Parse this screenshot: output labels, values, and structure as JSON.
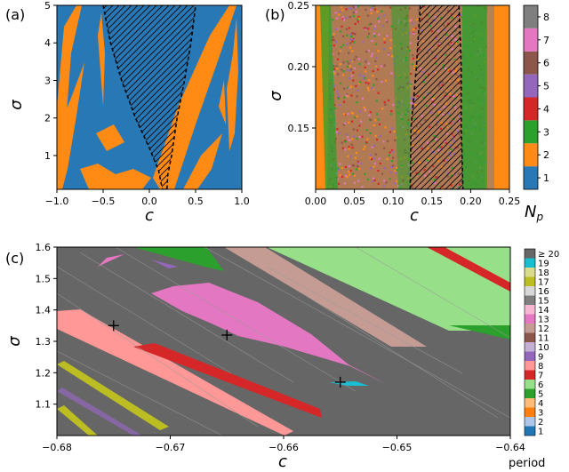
{
  "figure": {
    "panels": [
      "(a)",
      "(b)",
      "(c)"
    ]
  },
  "colors": {
    "blue": "#2878b5",
    "orange": "#ff8a14",
    "green": "#2ca02c",
    "red": "#d62728",
    "purple": "#9467bd",
    "brown": "#8c564b",
    "pink": "#e377c2",
    "gray": "#7f7f7f",
    "dark_gray": "#666666",
    "light_green": "#98df8a",
    "salmon": "#ff9896",
    "rose": "#c49c94",
    "cyan": "#17becf",
    "olive": "#bcbd22"
  },
  "chart_data": [
    {
      "panel": "(a)",
      "type": "heatmap",
      "xlabel": "c",
      "ylabel": "σ",
      "xlim": [
        -1.0,
        1.0
      ],
      "ylim": [
        0.1,
        5.0
      ],
      "xticks": [
        "−1.0",
        "−0.5",
        "0.0",
        "0.5",
        "1.0"
      ],
      "yticks": [
        "1",
        "2",
        "3",
        "4",
        "5"
      ],
      "background_class": "blue",
      "hatched_region_left_boundary": [
        [
          -0.5,
          5.0
        ],
        [
          -0.42,
          4.0
        ],
        [
          -0.3,
          3.0
        ],
        [
          -0.15,
          2.0
        ],
        [
          0.0,
          1.2
        ],
        [
          0.1,
          0.6
        ],
        [
          0.14,
          0.1
        ]
      ],
      "hatched_region_right_boundary": [
        [
          0.5,
          5.0
        ],
        [
          0.45,
          4.0
        ],
        [
          0.38,
          3.0
        ],
        [
          0.3,
          2.0
        ],
        [
          0.24,
          1.0
        ],
        [
          0.2,
          0.5
        ],
        [
          0.19,
          0.1
        ]
      ]
    },
    {
      "panel": "(b)",
      "type": "heatmap",
      "xlabel": "c",
      "ylabel": "σ",
      "xlim": [
        0.0,
        0.25
      ],
      "ylim": [
        0.1,
        0.25
      ],
      "xticks": [
        "0.00",
        "0.05",
        "0.10",
        "0.15",
        "0.20",
        "0.25"
      ],
      "yticks": [
        "0.15",
        "0.20",
        "0.25"
      ],
      "hatched_region_boundary": [
        [
          0.135,
          0.25
        ],
        [
          0.13,
          0.2
        ],
        [
          0.123,
          0.15
        ],
        [
          0.122,
          0.1
        ],
        [
          0.19,
          0.1
        ],
        [
          0.188,
          0.15
        ],
        [
          0.188,
          0.2
        ],
        [
          0.185,
          0.25
        ]
      ],
      "colorbar": {
        "label": "N",
        "label_subscript": "p",
        "levels": [
          "1",
          "2",
          "3",
          "4",
          "5",
          "6",
          "7",
          "8"
        ]
      }
    },
    {
      "panel": "(c)",
      "type": "heatmap",
      "xlabel": "c",
      "ylabel": "σ",
      "xlim": [
        -0.68,
        -0.64
      ],
      "ylim": [
        1.0,
        1.6
      ],
      "xticks": [
        "−0.68",
        "−0.67",
        "−0.66",
        "−0.65",
        "−0.64"
      ],
      "yticks": [
        "1.1",
        "1.2",
        "1.3",
        "1.4",
        "1.5",
        "1.6"
      ],
      "markers": [
        {
          "c": -0.675,
          "sigma": 1.35
        },
        {
          "c": -0.665,
          "sigma": 1.32
        },
        {
          "c": -0.655,
          "sigma": 1.17
        }
      ],
      "colorbar": {
        "label": "period",
        "levels": [
          "1",
          "2",
          "3",
          "4",
          "5",
          "6",
          "7",
          "8",
          "9",
          "10",
          "11",
          "12",
          "13",
          "14",
          "15",
          "16",
          "17",
          "18",
          "19",
          "≥ 20"
        ]
      }
    }
  ]
}
